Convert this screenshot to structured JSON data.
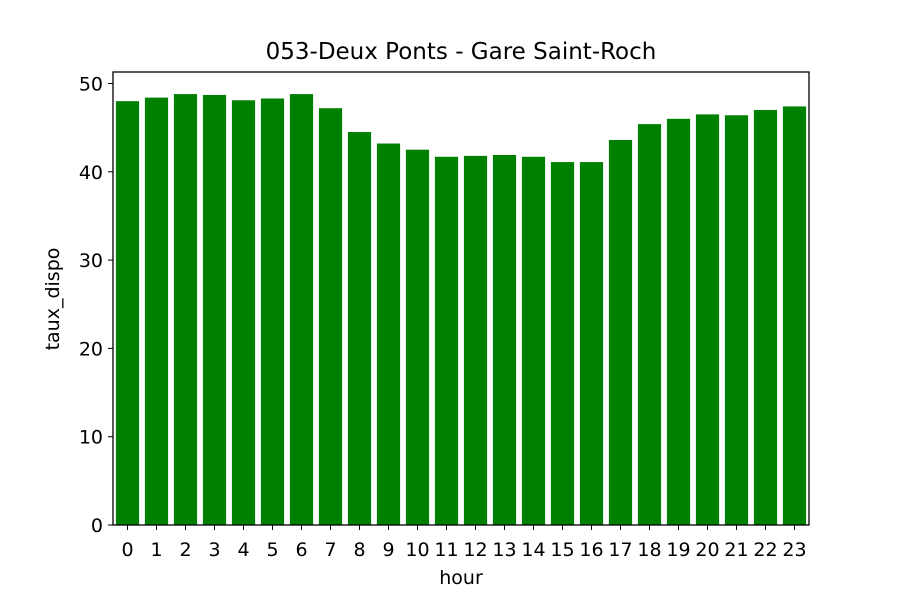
{
  "chart_data": {
    "type": "bar",
    "title": "053-Deux Ponts - Gare Saint-Roch",
    "xlabel": "hour",
    "ylabel": "taux_dispo",
    "categories": [
      "0",
      "1",
      "2",
      "3",
      "4",
      "5",
      "6",
      "7",
      "8",
      "9",
      "10",
      "11",
      "12",
      "13",
      "14",
      "15",
      "16",
      "17",
      "18",
      "19",
      "20",
      "21",
      "22",
      "23"
    ],
    "values": [
      48.0,
      48.4,
      48.8,
      48.7,
      48.1,
      48.3,
      48.8,
      47.2,
      44.5,
      43.2,
      42.5,
      41.7,
      41.8,
      41.9,
      41.7,
      41.1,
      41.1,
      43.6,
      45.4,
      46.0,
      46.5,
      46.4,
      47.0,
      47.4
    ],
    "ylim": [
      0,
      51.3
    ],
    "yticks": [
      0,
      10,
      20,
      30,
      40,
      50
    ],
    "bar_color": "#008000",
    "grid": false,
    "legend": "none"
  }
}
